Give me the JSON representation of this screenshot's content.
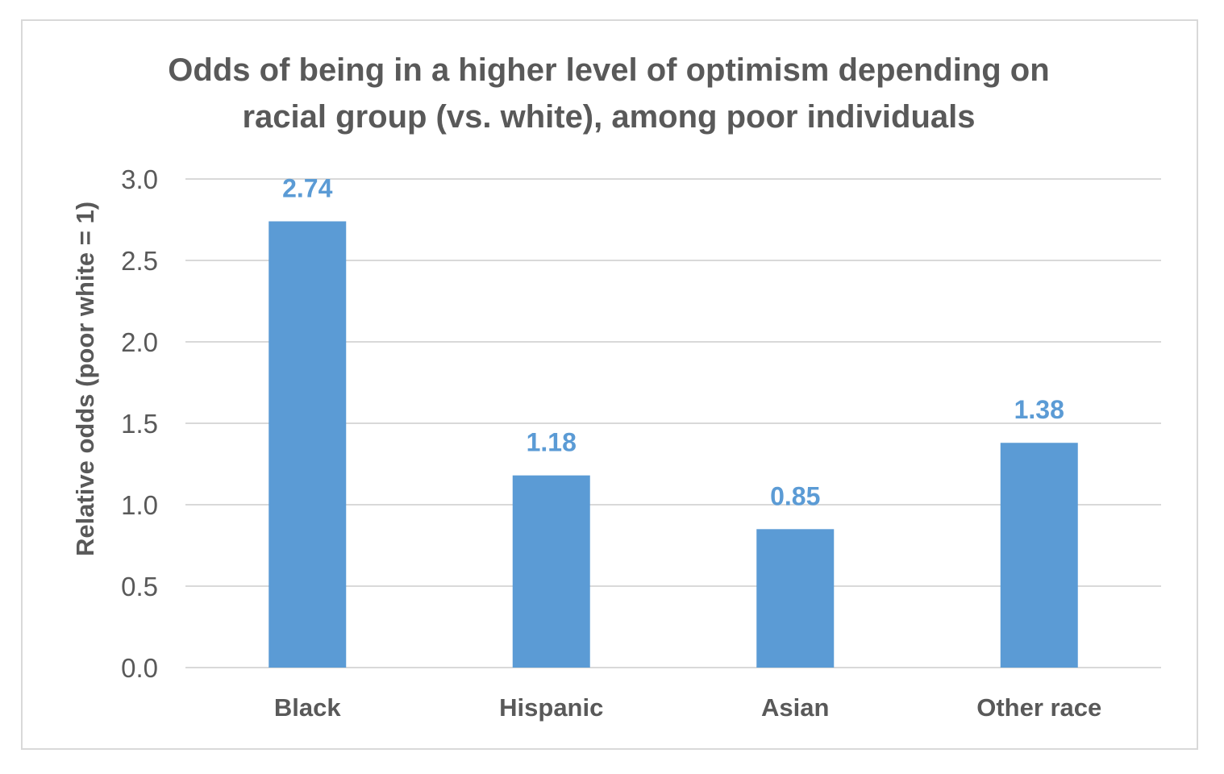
{
  "chart_data": {
    "type": "bar",
    "title_lines": [
      "Odds of being in a higher level of optimism depending on",
      "racial group (vs. white), among poor individuals"
    ],
    "xlabel": "",
    "ylabel": "Relative odds (poor white = 1)",
    "categories": [
      "Black",
      "Hispanic",
      "Asian",
      "Other race"
    ],
    "values": [
      2.74,
      1.18,
      0.85,
      1.38
    ],
    "data_labels": [
      "2.74",
      "1.18",
      "0.85",
      "1.38"
    ],
    "ylim": [
      0,
      3
    ],
    "yticks": [
      0,
      0.5,
      1,
      1.5,
      2,
      2.5,
      3
    ],
    "ytick_labels": [
      "0.0",
      "0.5",
      "1.0",
      "1.5",
      "2.0",
      "2.5",
      "3.0"
    ],
    "grid": true,
    "legend": "none",
    "colors": {
      "bar": "#5b9bd5",
      "data_label": "#5b9bd5",
      "grid": "#d9d9d9",
      "text": "#595959"
    }
  }
}
